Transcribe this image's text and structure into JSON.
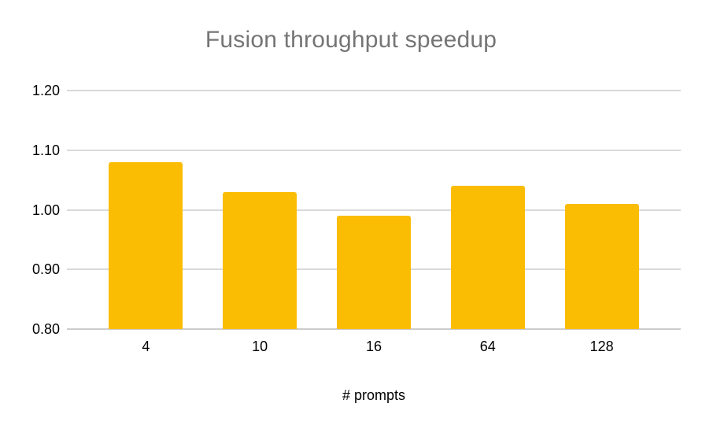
{
  "chart_data": {
    "type": "bar",
    "title": "Fusion throughput speedup",
    "xlabel": "# prompts",
    "ylabel": "",
    "categories": [
      "4",
      "10",
      "16",
      "64",
      "128"
    ],
    "values": [
      1.08,
      1.03,
      0.99,
      1.04,
      1.01
    ],
    "ylim": [
      0.8,
      1.2
    ],
    "yticks": [
      1.2,
      1.1,
      1.0,
      0.9,
      0.8
    ],
    "ytick_labels": [
      "1.20",
      "1.10",
      "1.00",
      "0.90",
      "0.80"
    ],
    "grid": true,
    "legend": "none",
    "colors": {
      "bar_fill": "#fbbc04",
      "title_text": "#757575",
      "axis_text": "#000000",
      "gridline": "#d9d9d9",
      "baseline": "#cccccc",
      "background": "#ffffff"
    }
  }
}
